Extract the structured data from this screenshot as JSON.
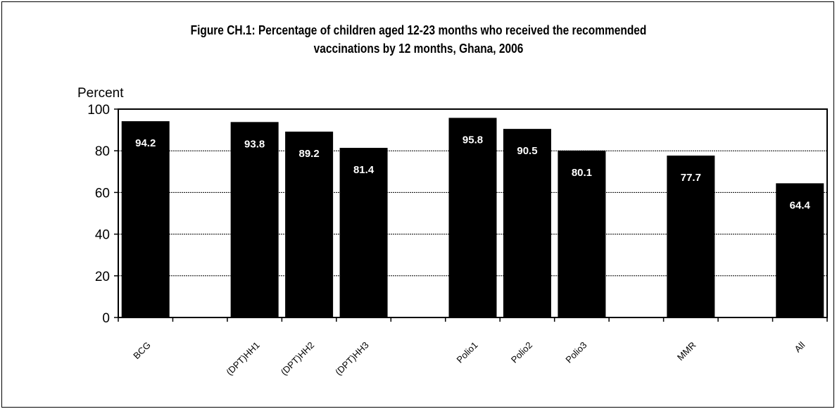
{
  "chart_data": {
    "type": "bar",
    "title": "Figure CH.1: Percentage of children aged 12-23 months who received the recommended vaccinations by 12 months, Ghana, 2006",
    "title_lines": [
      "Figure CH.1: Percentage of children aged 12-23 months who received the recommended",
      "vaccinations by 12 months, Ghana, 2006"
    ],
    "xlabel": "",
    "ylabel": "Percent",
    "ylim": [
      0,
      100
    ],
    "yticks": [
      0,
      20,
      40,
      60,
      80,
      100
    ],
    "grid": true,
    "categories": [
      "BCG",
      "",
      "(DPT)HH1",
      "(DPT)HH2",
      "(DPT)HH3",
      "",
      "Polio1",
      "Polio2",
      "Polio3",
      "",
      "MMR",
      "",
      "All"
    ],
    "values": [
      94.2,
      null,
      93.8,
      89.2,
      81.4,
      null,
      95.8,
      90.5,
      80.1,
      null,
      77.7,
      null,
      64.4
    ],
    "data_labels": [
      "94.2",
      "",
      "93.8",
      "89.2",
      "81.4",
      "",
      "95.8",
      "90.5",
      "80.1",
      "",
      "77.7",
      "",
      "64.4"
    ],
    "colors": {
      "bar": "#000000",
      "label": "#ffffff",
      "grid": "#000000"
    }
  }
}
